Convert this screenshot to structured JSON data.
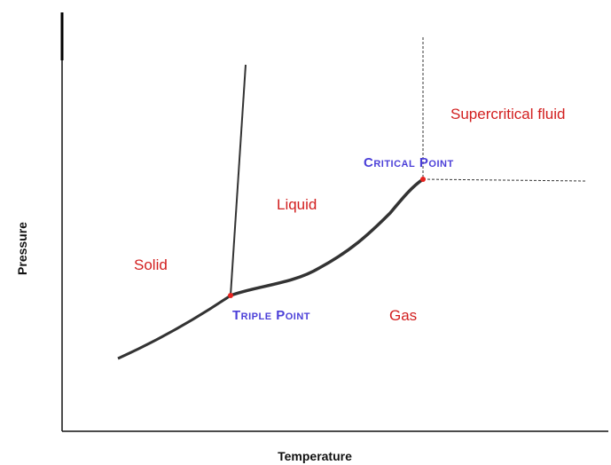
{
  "axes": {
    "x_label": "Temperature",
    "y_label": "Pressure"
  },
  "regions": [
    "Solid",
    "Liquid",
    "Gas",
    "Supercritical fluid"
  ],
  "points": {
    "triple": "Triple Point",
    "critical": "Critical Point"
  }
}
